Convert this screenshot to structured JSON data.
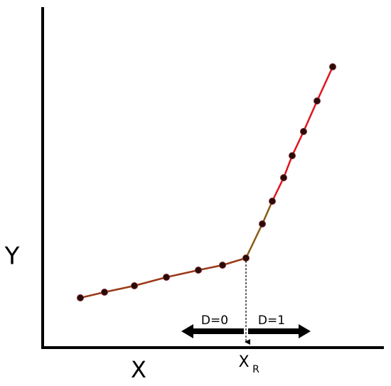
{
  "labels": {
    "y_axis": "Y",
    "x_axis": "X",
    "threshold": "X",
    "threshold_subscript": "R",
    "left_region": "D=0",
    "right_region": "D=1"
  }
}
